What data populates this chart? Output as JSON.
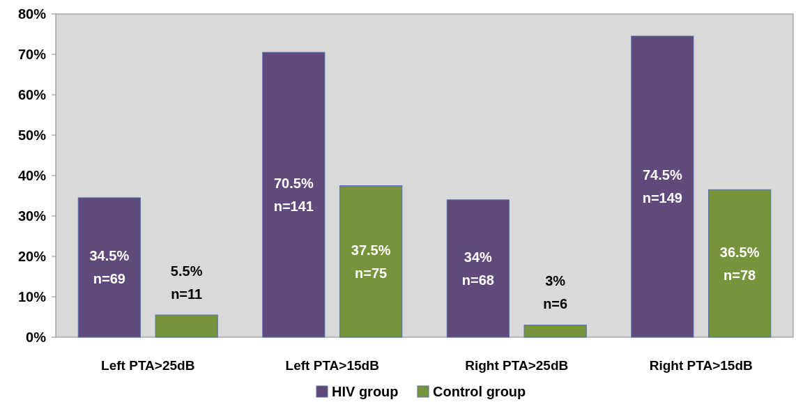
{
  "chart_data": {
    "type": "bar",
    "categories": [
      "Left PTA>25dB",
      "Left PTA>15dB",
      "Right PTA>25dB",
      "Right PTA>15dB"
    ],
    "series": [
      {
        "name": "HIV group",
        "color": "#604a7b",
        "values": [
          34.5,
          70.5,
          34,
          74.5
        ],
        "value_labels": [
          "34.5%\nn=69",
          "70.5%\nn=141",
          "34%\nn=68",
          "74.5%\nn=149"
        ]
      },
      {
        "name": "Control group",
        "color": "#77933c",
        "values": [
          5.5,
          37.5,
          3,
          36.5
        ],
        "value_labels": [
          "5.5%\nn=11",
          "37.5%\nn=75",
          "3%\nn=6",
          "36.5%\nn=78"
        ]
      }
    ],
    "ylim": [
      0,
      80
    ],
    "yticks": [
      {
        "value": 0,
        "label": "0%"
      },
      {
        "value": 10,
        "label": "10%"
      },
      {
        "value": 20,
        "label": "20%"
      },
      {
        "value": 30,
        "label": "30%"
      },
      {
        "value": 40,
        "label": "40%"
      },
      {
        "value": 50,
        "label": "50%"
      },
      {
        "value": 60,
        "label": "60%"
      },
      {
        "value": 70,
        "label": "70%"
      },
      {
        "value": 80,
        "label": "80%"
      }
    ],
    "grid": false,
    "legend": "bottom"
  }
}
